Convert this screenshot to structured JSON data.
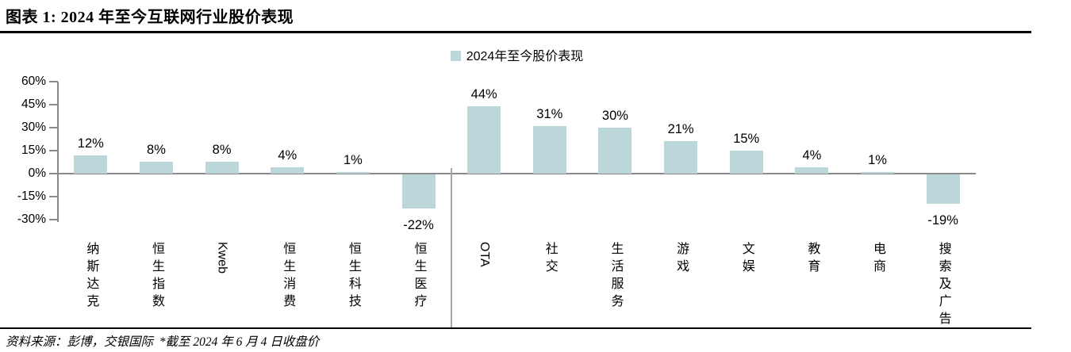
{
  "header": {
    "title": "图表 1: 2024 年至今互联网行业股价表现"
  },
  "legend": {
    "label": "2024年至今股价表现"
  },
  "source_note": "资料来源：彭博，交银国际  *截至 2024 年 6 月 4 日收盘价",
  "colors": {
    "bar": "#bcd7da",
    "axis": "#8a8a8a",
    "separator": "#a6a6a6",
    "rule": "#000000",
    "text": "#000000"
  },
  "chart_data": {
    "type": "bar",
    "title": "2024年至今股价表现",
    "categories": [
      "纳斯达克",
      "恒生指数",
      "Kweb",
      "恒生消费",
      "恒生科技",
      "恒生医疗",
      "OTA",
      "社交",
      "生活服务",
      "游戏",
      "文娱",
      "教育",
      "电商",
      "搜索及广告"
    ],
    "series": [
      {
        "name": "2024年至今股价表现",
        "values": [
          12,
          8,
          8,
          4,
          1,
          -22,
          44,
          31,
          30,
          21,
          15,
          4,
          1,
          -19
        ]
      }
    ],
    "data_labels": [
      "12%",
      "8%",
      "8%",
      "4%",
      "1%",
      "-22%",
      "44%",
      "31%",
      "30%",
      "21%",
      "15%",
      "4%",
      "1%",
      "-19%"
    ],
    "yticks": [
      60,
      45,
      30,
      15,
      0,
      -15,
      -30
    ],
    "ytick_labels": [
      "60%",
      "45%",
      "30%",
      "15%",
      "0%",
      "-15%",
      "-30%"
    ],
    "ylim": [
      -30,
      60
    ],
    "unit": "%",
    "grid": false,
    "legend_position": "top-center",
    "separator_after_category": "恒生医疗",
    "group_split_index": 6
  }
}
